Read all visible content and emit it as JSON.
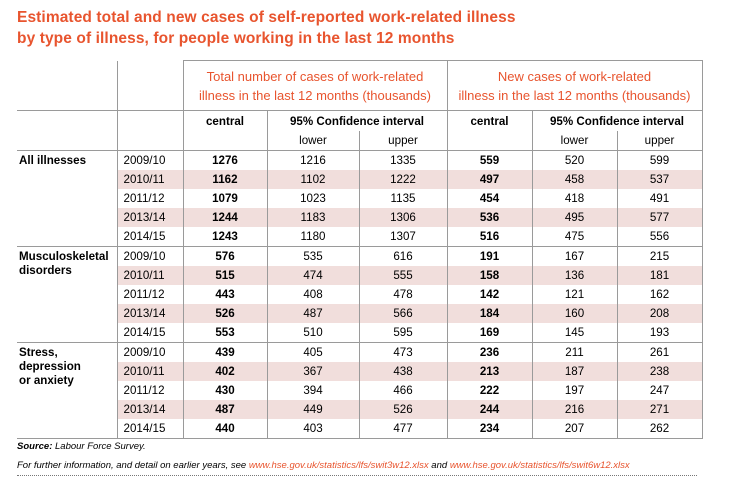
{
  "title_line1": "Estimated total and new cases of self-reported work-related illness",
  "title_line2": "by type of illness, for people working in the last 12 months",
  "header": {
    "total_line1": "Total number of cases of work-related",
    "total_line2": "illness in the last 12 months (thousands)",
    "new_line1": "New cases of work-related",
    "new_line2": "illness in the last 12 months (thousands)",
    "central": "central",
    "ci": "95% Confidence interval",
    "lower": "lower",
    "upper": "upper"
  },
  "groups": [
    {
      "label_lines": [
        "All illnesses"
      ],
      "rows": [
        {
          "year": "2009/10",
          "t_c": "1276",
          "t_l": "1216",
          "t_u": "1335",
          "n_c": "559",
          "n_l": "520",
          "n_u": "599"
        },
        {
          "year": "2010/11",
          "t_c": "1162",
          "t_l": "1102",
          "t_u": "1222",
          "n_c": "497",
          "n_l": "458",
          "n_u": "537"
        },
        {
          "year": "2011/12",
          "t_c": "1079",
          "t_l": "1023",
          "t_u": "1135",
          "n_c": "454",
          "n_l": "418",
          "n_u": "491"
        },
        {
          "year": "2013/14",
          "t_c": "1244",
          "t_l": "1183",
          "t_u": "1306",
          "n_c": "536",
          "n_l": "495",
          "n_u": "577"
        },
        {
          "year": "2014/15",
          "t_c": "1243",
          "t_l": "1180",
          "t_u": "1307",
          "n_c": "516",
          "n_l": "475",
          "n_u": "556"
        }
      ]
    },
    {
      "label_lines": [
        "Musculoskeletal",
        "disorders"
      ],
      "rows": [
        {
          "year": "2009/10",
          "t_c": "576",
          "t_l": "535",
          "t_u": "616",
          "n_c": "191",
          "n_l": "167",
          "n_u": "215"
        },
        {
          "year": "2010/11",
          "t_c": "515",
          "t_l": "474",
          "t_u": "555",
          "n_c": "158",
          "n_l": "136",
          "n_u": "181"
        },
        {
          "year": "2011/12",
          "t_c": "443",
          "t_l": "408",
          "t_u": "478",
          "n_c": "142",
          "n_l": "121",
          "n_u": "162"
        },
        {
          "year": "2013/14",
          "t_c": "526",
          "t_l": "487",
          "t_u": "566",
          "n_c": "184",
          "n_l": "160",
          "n_u": "208"
        },
        {
          "year": "2014/15",
          "t_c": "553",
          "t_l": "510",
          "t_u": "595",
          "n_c": "169",
          "n_l": "145",
          "n_u": "193"
        }
      ]
    },
    {
      "label_lines": [
        "Stress,",
        "depression",
        "or anxiety"
      ],
      "rows": [
        {
          "year": "2009/10",
          "t_c": "439",
          "t_l": "405",
          "t_u": "473",
          "n_c": "236",
          "n_l": "211",
          "n_u": "261"
        },
        {
          "year": "2010/11",
          "t_c": "402",
          "t_l": "367",
          "t_u": "438",
          "n_c": "213",
          "n_l": "187",
          "n_u": "238"
        },
        {
          "year": "2011/12",
          "t_c": "430",
          "t_l": "394",
          "t_u": "466",
          "n_c": "222",
          "n_l": "197",
          "n_u": "247"
        },
        {
          "year": "2013/14",
          "t_c": "487",
          "t_l": "449",
          "t_u": "526",
          "n_c": "244",
          "n_l": "216",
          "n_u": "271"
        },
        {
          "year": "2014/15",
          "t_c": "440",
          "t_l": "403",
          "t_u": "477",
          "n_c": "234",
          "n_l": "207",
          "n_u": "262"
        }
      ]
    }
  ],
  "footer": {
    "source_label": "Source:",
    "source_text": " Labour Force Survey.",
    "info_text": "For further information, and detail on earlier years, see ",
    "link1": "www.hse.gov.uk/statistics/lfs/swit3w12.xlsx",
    "and": " and ",
    "link2": "www.hse.gov.uk/statistics/lfs/swit6w12.xlsx"
  },
  "colors": {
    "accent": "#e8542e",
    "row_shade": "#f1dedc",
    "rule": "#9a9a9a"
  }
}
